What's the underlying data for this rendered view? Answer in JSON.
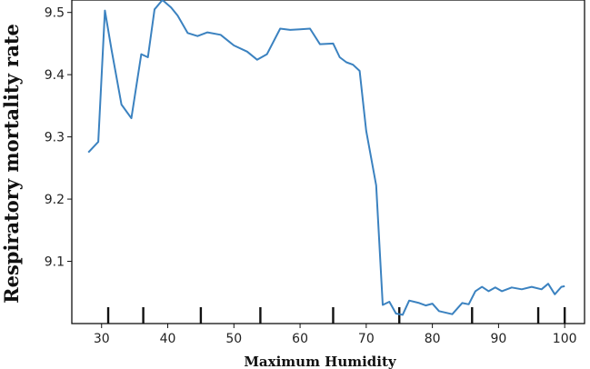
{
  "chart_data": {
    "type": "line",
    "title": "",
    "xlabel": "Maximum Humidity",
    "ylabel": "Respiratory mortality rate",
    "xlim": [
      25.5,
      103
    ],
    "ylim": [
      9.0,
      9.52
    ],
    "x_ticks": [
      30,
      40,
      50,
      60,
      70,
      80,
      90,
      100
    ],
    "y_ticks": [
      9.1,
      9.2,
      9.3,
      9.4,
      9.5
    ],
    "x_tick_labels": [
      "30",
      "40",
      "50",
      "60",
      "70",
      "80",
      "90",
      "100"
    ],
    "y_tick_labels": [
      "9.1",
      "9.2",
      "9.3",
      "9.4",
      "9.5"
    ],
    "rug_x": [
      31,
      36.3,
      45,
      54,
      65,
      75,
      86,
      96,
      100
    ],
    "grid": false,
    "line_color": "#3b82c0",
    "series": [
      {
        "x": [
          28,
          29.5,
          30.5,
          31.5,
          33,
          34.5,
          36,
          37,
          38,
          39.2,
          40.5,
          41.5,
          43,
          44.5,
          46,
          48,
          50,
          52,
          53.5,
          55,
          57,
          58.5,
          60,
          61.5,
          63,
          65,
          66,
          67,
          68,
          69,
          70,
          71.5,
          72.5,
          73.5,
          74.5,
          75.5,
          76.5,
          78,
          79,
          80,
          81,
          83,
          84.5,
          85.5,
          86.5,
          87.5,
          88.5,
          89.5,
          90.5,
          92,
          93.5,
          95,
          96.5,
          97.5,
          98.5,
          99.5,
          100
        ],
        "y": [
          9.275,
          9.292,
          9.503,
          9.44,
          9.352,
          9.33,
          9.433,
          9.428,
          9.505,
          9.52,
          9.508,
          9.495,
          9.467,
          9.462,
          9.468,
          9.464,
          9.447,
          9.437,
          9.424,
          9.433,
          9.474,
          9.472,
          9.473,
          9.474,
          9.449,
          9.45,
          9.428,
          9.42,
          9.416,
          9.406,
          9.31,
          9.222,
          9.03,
          9.035,
          9.016,
          9.014,
          9.037,
          9.033,
          9.029,
          9.032,
          9.02,
          9.015,
          9.033,
          9.031,
          9.052,
          9.059,
          9.052,
          9.058,
          9.052,
          9.058,
          9.055,
          9.059,
          9.055,
          9.064,
          9.047,
          9.059,
          9.06
        ]
      }
    ]
  }
}
